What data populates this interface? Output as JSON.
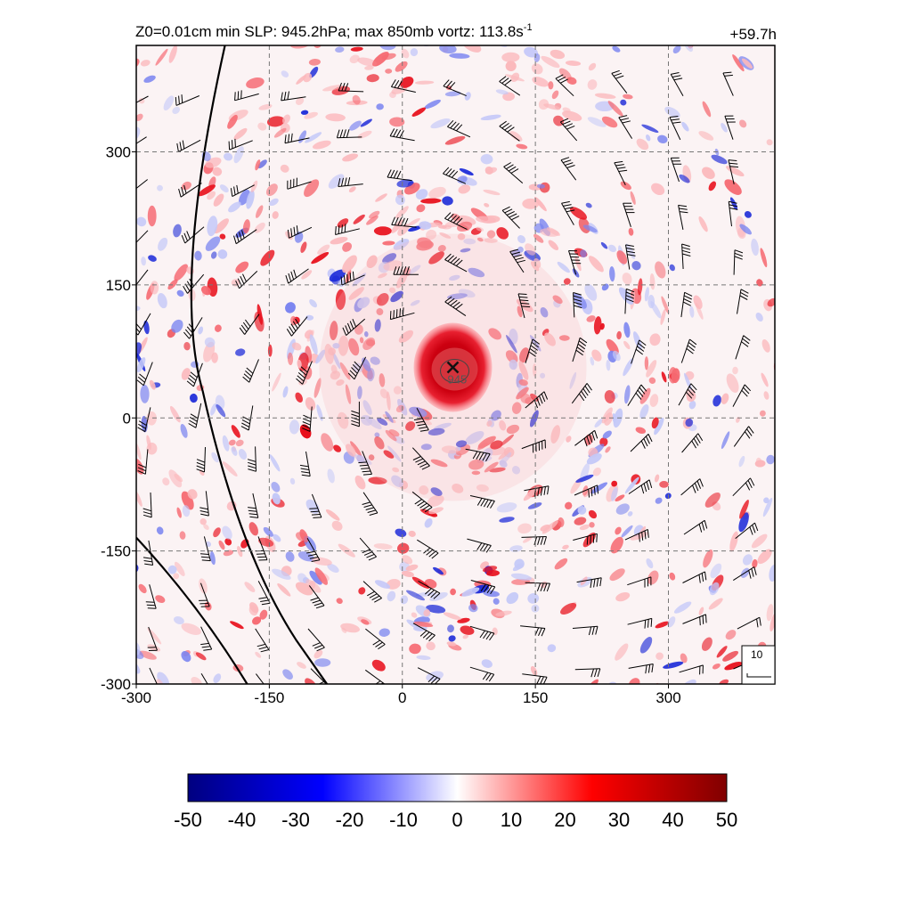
{
  "chart_data": {
    "type": "heatmap",
    "title_left_main": "Z0=0.01cm  min SLP: 945.2hPa; max 850mb vortz: 113.8s",
    "title_left_sup": "-1",
    "title_right": "+59.7h",
    "x": {
      "min": -300,
      "max": 420,
      "ticks": [
        -300,
        -150,
        0,
        150,
        300
      ],
      "tick_labels": [
        "-300",
        "-150",
        "0",
        "150",
        "300"
      ]
    },
    "y": {
      "min": -300,
      "max": 420,
      "ticks": [
        -300,
        -150,
        0,
        150,
        300
      ],
      "tick_labels": [
        "-300",
        "-150",
        "0",
        "150",
        "300"
      ]
    },
    "grid": true,
    "center": {
      "x": 57,
      "y": 57,
      "marker": "x",
      "label": "945"
    },
    "colorbar": {
      "min": -50,
      "max": 50,
      "ticks": [
        -50,
        -40,
        -30,
        -20,
        -10,
        0,
        10,
        20,
        30,
        40,
        50
      ],
      "tick_labels": [
        "-50",
        "-40",
        "-30",
        "-20",
        "-10",
        "0",
        "10",
        "20",
        "30",
        "40",
        "50"
      ],
      "colors": [
        "#000080",
        "#0000ff",
        "#ffffff",
        "#ff0000",
        "#800000"
      ]
    },
    "wind_key_label": "10",
    "overlays": [
      "wind barbs",
      "vorticity shading",
      "sea-level pressure contours"
    ]
  }
}
